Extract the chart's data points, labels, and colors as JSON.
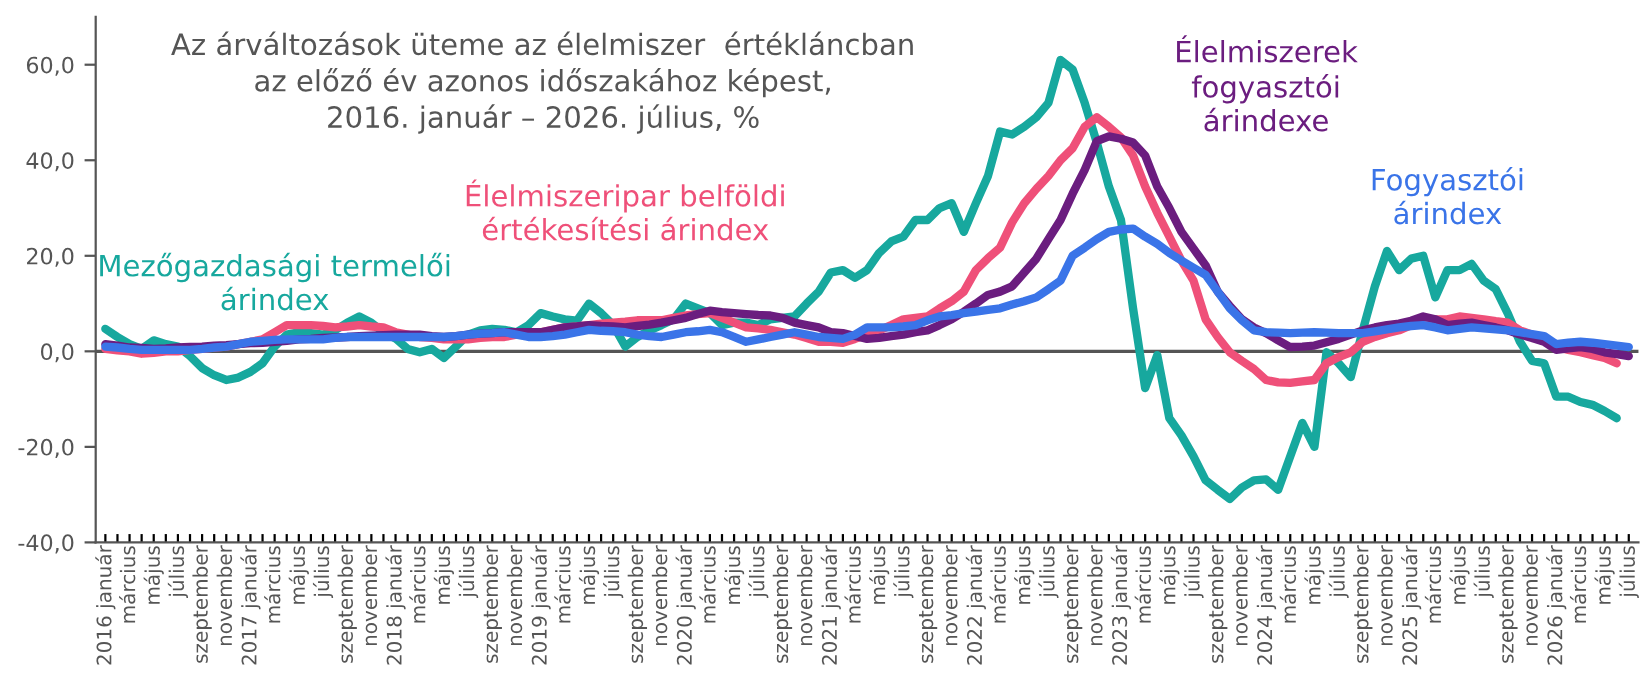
{
  "chart_data": {
    "type": "line",
    "title": "Az árváltozások üteme az élelmiszer  értékláncban\naz előző év azonos időszakához képest,\n2016. január – 2026. július, %",
    "categories": [
      "2016 január",
      null,
      "március",
      null,
      "május",
      null,
      "július",
      null,
      "szeptember",
      null,
      "november",
      null,
      "2017 január",
      null,
      "március",
      null,
      "május",
      null,
      "július",
      null,
      "szeptember",
      null,
      "november",
      null,
      "2018 január",
      null,
      "március",
      null,
      "május",
      null,
      "július",
      null,
      "szeptember",
      null,
      "november",
      null,
      "2019 január",
      null,
      "március",
      null,
      "május",
      null,
      "július",
      null,
      "szeptember",
      null,
      "november",
      null,
      "2020 január",
      null,
      "március",
      null,
      "május",
      null,
      "július",
      null,
      "szeptember",
      null,
      "november",
      null,
      "2021 január",
      null,
      "március",
      null,
      "május",
      null,
      "július",
      null,
      "szeptember",
      null,
      "november",
      null,
      "2022 január",
      null,
      "március",
      null,
      "május",
      null,
      "július",
      null,
      "szeptember",
      null,
      "november",
      null,
      "2023 január",
      null,
      "március",
      null,
      "május",
      null,
      "július",
      null,
      "szeptember",
      null,
      "november",
      null,
      "2024 január",
      null,
      "március",
      null,
      "május",
      null,
      "július",
      null,
      "szeptember",
      null,
      "november",
      null,
      "2025 január",
      null,
      "március",
      null,
      "május",
      null,
      "július",
      null,
      "szeptember",
      null,
      "november",
      null,
      "2026 január",
      null,
      "március",
      null,
      "május",
      null,
      "július"
    ],
    "series": [
      {
        "name": "Mezőgazdasági termelői\nárindex",
        "color": "#17a89e",
        "values": [
          4.7,
          3,
          1.5,
          0.5,
          2.3,
          1.5,
          1,
          -1,
          -3.5,
          -5,
          -6,
          -5.5,
          -4.3,
          -2.5,
          1,
          3.5,
          4,
          3.8,
          3.5,
          4.4,
          6,
          7.3,
          6,
          4,
          2.7,
          0.5,
          -0.2,
          0.5,
          -1.4,
          1,
          3.5,
          4.4,
          4.7,
          4.5,
          4,
          5.5,
          8,
          7.3,
          6.7,
          6.4,
          10,
          8,
          5.5,
          1,
          3,
          4.4,
          5.5,
          6.7,
          10,
          9,
          8,
          5.5,
          6,
          6,
          5.5,
          6.7,
          7,
          7.3,
          10,
          12.5,
          16.5,
          17,
          15.4,
          17,
          20.6,
          23,
          24,
          27.5,
          27.5,
          30,
          31,
          25,
          31,
          36.7,
          46,
          45.4,
          47,
          49,
          52,
          61,
          59,
          52,
          43.7,
          34.5,
          27.5,
          9,
          -7.7,
          -0.8,
          -14,
          -17.6,
          -22,
          -27,
          -29,
          -30.9,
          -28.5,
          -27,
          -26.8,
          -29,
          -22,
          -15,
          -20,
          -0.2,
          -2.5,
          -5.4,
          4.4,
          13.6,
          21,
          17,
          19.4,
          20,
          11.3,
          17,
          17,
          18.3,
          14.8,
          13,
          7.9,
          2,
          -2,
          -2.5,
          -9.5,
          -9.5,
          -10.6,
          -11.2,
          -12.5,
          -14,
          null
        ]
      },
      {
        "name": "Élelmiszeripar belföldi\nértékesítési árindex",
        "color": "#ef5079",
        "values": [
          0.5,
          0.2,
          0,
          -0.5,
          -0.3,
          0,
          0,
          0.3,
          0.5,
          0.8,
          1,
          1.5,
          2,
          2.5,
          4,
          5.5,
          5.5,
          5.5,
          5.3,
          5,
          5.2,
          5.5,
          5.2,
          5,
          4,
          3.5,
          3,
          2.8,
          2.5,
          2.5,
          2.5,
          2.8,
          3,
          3,
          3.5,
          4,
          4,
          4.5,
          5,
          5.2,
          5.5,
          5.8,
          6,
          6.2,
          6.5,
          6.5,
          6.5,
          7,
          7.5,
          7.8,
          8,
          7,
          6,
          5,
          4.8,
          4.5,
          4,
          3.5,
          2.8,
          2,
          2,
          1.8,
          2.6,
          3.5,
          4.4,
          5.5,
          6.7,
          7,
          7.3,
          9,
          10.5,
          12.5,
          17,
          19.5,
          21.7,
          27,
          31,
          34,
          36.7,
          40,
          42.5,
          47,
          49,
          47,
          44.8,
          41,
          34.5,
          29,
          24,
          19,
          14.8,
          6.7,
          3,
          -0.2,
          -2,
          -3.7,
          -6,
          -6.5,
          -6.6,
          -6.3,
          -6,
          -2.5,
          -1.2,
          -0.2,
          2,
          3,
          3.8,
          4.4,
          5.5,
          6.7,
          6.7,
          6.7,
          7.3,
          7,
          6.7,
          6.3,
          6,
          4.4,
          3.5,
          2.6,
          0.9,
          0.3,
          -0.2,
          -0.8,
          -1.4,
          -2.5,
          null
        ]
      },
      {
        "name": "Élelmiszerek\nfogyasztói\nárindexe",
        "color": "#6b1d7f",
        "values": [
          1.5,
          1.2,
          0.8,
          0.7,
          0.5,
          0.6,
          0.8,
          0.9,
          1,
          1.2,
          1.3,
          1.5,
          1.7,
          1.8,
          2,
          2.2,
          2.5,
          2.6,
          2.8,
          2.9,
          3,
          3.2,
          3.3,
          3.4,
          3.5,
          3.5,
          3.5,
          3.2,
          3,
          3.2,
          3.5,
          3.7,
          3.8,
          4,
          4,
          4,
          4,
          4.5,
          5,
          5.2,
          5.5,
          5.3,
          5.2,
          5,
          5.3,
          5.6,
          6,
          6.5,
          7,
          7.8,
          8.5,
          8.2,
          8,
          7.8,
          7.6,
          7.5,
          7,
          6,
          5.5,
          5,
          4,
          3.8,
          3.2,
          2.6,
          2.8,
          3.2,
          3.5,
          4,
          4.4,
          5.5,
          6.7,
          8.3,
          10,
          11.8,
          12.5,
          13.6,
          16.5,
          19.4,
          23.5,
          27.5,
          33,
          38,
          44,
          45,
          44.5,
          43.7,
          41,
          34.5,
          30,
          25,
          21.5,
          18,
          12.5,
          9.5,
          6.7,
          5,
          3.8,
          2.3,
          0.9,
          1,
          1.2,
          1.9,
          2.6,
          3.5,
          4.4,
          5,
          5.5,
          5.8,
          6.4,
          7.3,
          6.7,
          5.5,
          5.8,
          6,
          5.5,
          5,
          4.4,
          3.5,
          2.8,
          2,
          0.3,
          0.6,
          0.9,
          0.5,
          -0.2,
          -0.6,
          -1
        ]
      },
      {
        "name": "Fogyasztói\nárindex",
        "color": "#3a74e8",
        "values": [
          1,
          0.8,
          0.5,
          0.3,
          0.3,
          0.3,
          0.3,
          0.3,
          0.5,
          0.8,
          1,
          1.5,
          2,
          2.2,
          2.4,
          2.5,
          2.5,
          2.5,
          2.5,
          2.8,
          3,
          3,
          3,
          3,
          3,
          3,
          3,
          3,
          3,
          3.2,
          3.5,
          3.7,
          3.8,
          4,
          3.5,
          3,
          3,
          3.2,
          3.5,
          4,
          4.5,
          4.3,
          4.2,
          4,
          3.5,
          3.2,
          3,
          3.5,
          4,
          4.2,
          4.5,
          4,
          3,
          2,
          2.5,
          3,
          3.5,
          4,
          3.5,
          3,
          2.8,
          2.6,
          3.5,
          5,
          5,
          5,
          5.2,
          5.5,
          6.5,
          7.3,
          7.6,
          8,
          8.3,
          8.7,
          9,
          9.8,
          10.5,
          11.3,
          13,
          14.8,
          20,
          21.7,
          23.5,
          25,
          25.5,
          25.7,
          24,
          22.5,
          20.6,
          19,
          17.5,
          16,
          12.5,
          9,
          6.5,
          4.4,
          4,
          3.9,
          3.8,
          3.9,
          4,
          3.9,
          3.8,
          3.8,
          3.8,
          4.2,
          4.6,
          5,
          5.3,
          5.5,
          5,
          4.4,
          4.7,
          5,
          4.8,
          4.6,
          4.4,
          4,
          3.6,
          3.2,
          1.5,
          1.8,
          2,
          1.8,
          1.5,
          1.2,
          0.9
        ]
      }
    ],
    "ylim": [
      -40,
      70
    ],
    "yticks": [
      {
        "value": -40,
        "label": "-40,0"
      },
      {
        "value": -20,
        "label": "-20,0"
      },
      {
        "value": 0,
        "label": "0,0"
      },
      {
        "value": 20,
        "label": "20,0"
      },
      {
        "value": 40,
        "label": "40,0"
      },
      {
        "value": 60,
        "label": "60,0"
      }
    ],
    "ref_lines": [
      {
        "axis": "y",
        "value": 0,
        "color": "#555555"
      }
    ],
    "grid": false,
    "legend": false,
    "marker": "none",
    "line_style": "solid"
  }
}
